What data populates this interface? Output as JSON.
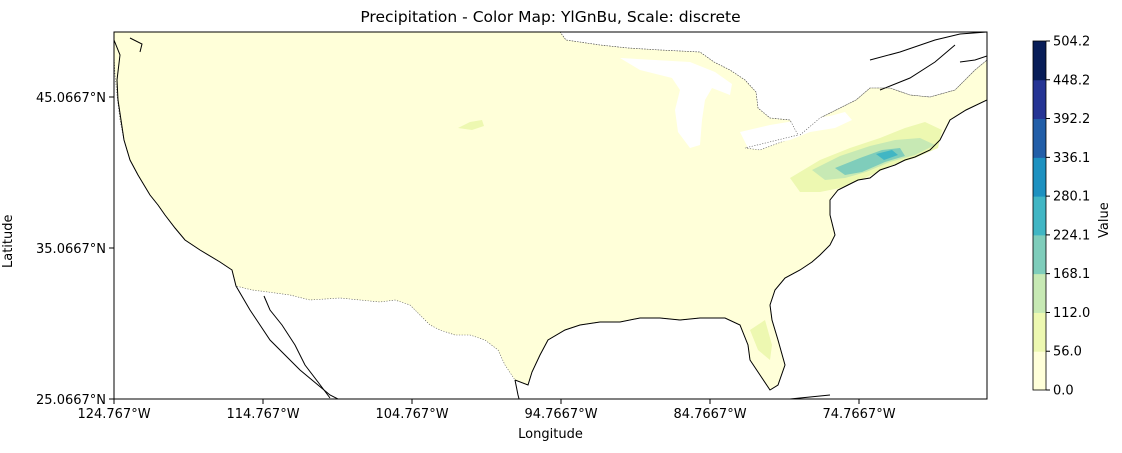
{
  "chart_data": {
    "type": "heatmap",
    "title": "Precipitation - Color Map: YlGnBu, Scale: discrete",
    "xlabel": "Longitude",
    "ylabel": "Latitude",
    "colorbar_label": "Value",
    "colormap": "YlGnBu",
    "scale": "discrete",
    "xlim": [
      -124.767,
      -66.0
    ],
    "ylim": [
      25.0667,
      49.3
    ],
    "x_ticks": [
      "124.767°W",
      "114.767°W",
      "104.767°W",
      "94.7667°W",
      "84.7667°W",
      "74.7667°W"
    ],
    "y_ticks": [
      "25.0667°N",
      "35.0667°N",
      "45.0667°N"
    ],
    "colorbar_ticks": [
      "0.0",
      "56.0",
      "112.0",
      "168.1",
      "224.1",
      "280.1",
      "336.1",
      "392.2",
      "448.2",
      "504.2"
    ],
    "colorbar_levels": [
      0.0,
      56.0,
      112.0,
      168.1,
      224.1,
      280.1,
      336.1,
      392.2,
      448.2,
      504.2
    ],
    "colors": [
      "#ffffd9",
      "#edf8b1",
      "#c7e9b4",
      "#7fcdbb",
      "#41b6c4",
      "#1d91c0",
      "#225ea8",
      "#253494",
      "#081d58"
    ]
  }
}
